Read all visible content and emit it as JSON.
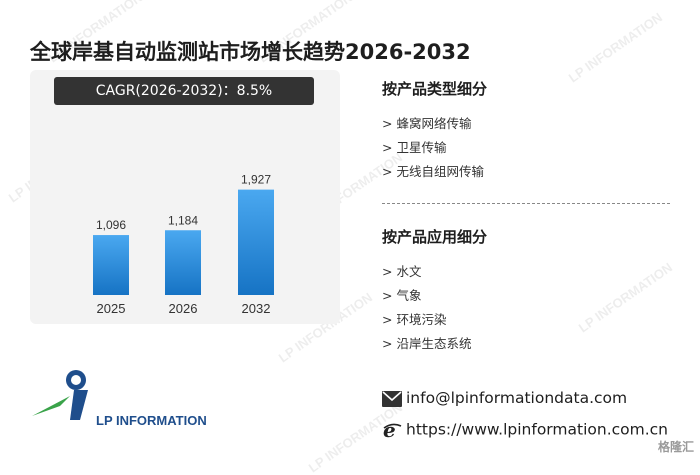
{
  "title": "全球岸基自动监测站市场增长趋势2026-2032",
  "cagr_label": "CAGR(2026-2032)：8.5%",
  "chart_data": {
    "type": "bar",
    "categories": [
      "2025",
      "2026",
      "2032"
    ],
    "values": [
      1096,
      1184,
      1927
    ],
    "value_labels": [
      "1,096",
      "1,184",
      "1,927"
    ],
    "title": "",
    "xlabel": "",
    "ylabel": "",
    "ylim": [
      0,
      2000
    ],
    "grid": false,
    "bar_color_top": "#4aa8f0",
    "bar_color_bottom": "#1673c4"
  },
  "segments": {
    "type_title": "按产品类型细分",
    "type_items": [
      "> 蜂窝网络传输",
      "> 卫星传输",
      "> 无线自组网传输"
    ],
    "app_title": "按产品应用细分",
    "app_items": [
      "> 水文",
      "> 气象",
      "> 环境污染",
      "> 沿岸生态系统"
    ]
  },
  "logo": {
    "text": "LP INFORMATION",
    "icon": "lp-information-logo-icon"
  },
  "contact": {
    "email": "info@lpinformationdata.com",
    "email_icon": "envelope-icon",
    "website": "https://www.lpinformation.com.cn",
    "website_icon": "browser-e-icon"
  },
  "watermark_text": "LP INFORMATION",
  "corner_badge": "格隆汇"
}
